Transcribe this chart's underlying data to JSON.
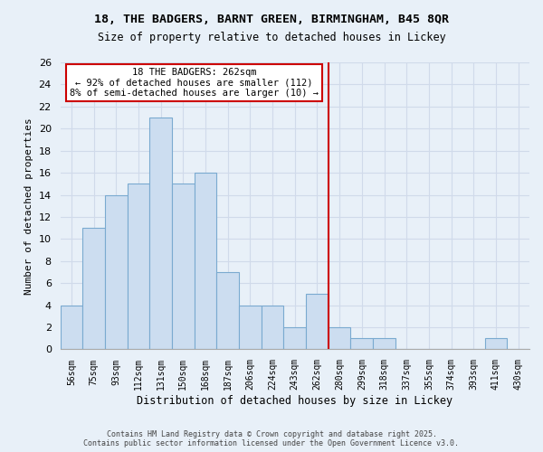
{
  "title": "18, THE BADGERS, BARNT GREEN, BIRMINGHAM, B45 8QR",
  "subtitle": "Size of property relative to detached houses in Lickey",
  "xlabel": "Distribution of detached houses by size in Lickey",
  "ylabel": "Number of detached properties",
  "bin_labels": [
    "56sqm",
    "75sqm",
    "93sqm",
    "112sqm",
    "131sqm",
    "150sqm",
    "168sqm",
    "187sqm",
    "206sqm",
    "224sqm",
    "243sqm",
    "262sqm",
    "280sqm",
    "299sqm",
    "318sqm",
    "337sqm",
    "355sqm",
    "374sqm",
    "393sqm",
    "411sqm",
    "430sqm"
  ],
  "counts": [
    4,
    11,
    14,
    15,
    21,
    15,
    16,
    7,
    4,
    4,
    2,
    5,
    2,
    1,
    1,
    0,
    0,
    0,
    0,
    1,
    0
  ],
  "bar_color": "#ccddf0",
  "bar_edge_color": "#7aaad0",
  "highlight_bin_index": 11,
  "annotation_line1": "18 THE BADGERS: 262sqm",
  "annotation_line2": "← 92% of detached houses are smaller (112)",
  "annotation_line3": "8% of semi-detached houses are larger (10) →",
  "annotation_box_color": "#ffffff",
  "annotation_box_edge": "#cc0000",
  "highlight_line_color": "#cc0000",
  "ylim": [
    0,
    26
  ],
  "yticks": [
    0,
    2,
    4,
    6,
    8,
    10,
    12,
    14,
    16,
    18,
    20,
    22,
    24,
    26
  ],
  "grid_color": "#d0daea",
  "footer_line1": "Contains HM Land Registry data © Crown copyright and database right 2025.",
  "footer_line2": "Contains public sector information licensed under the Open Government Licence v3.0.",
  "bg_color": "#e8f0f8"
}
